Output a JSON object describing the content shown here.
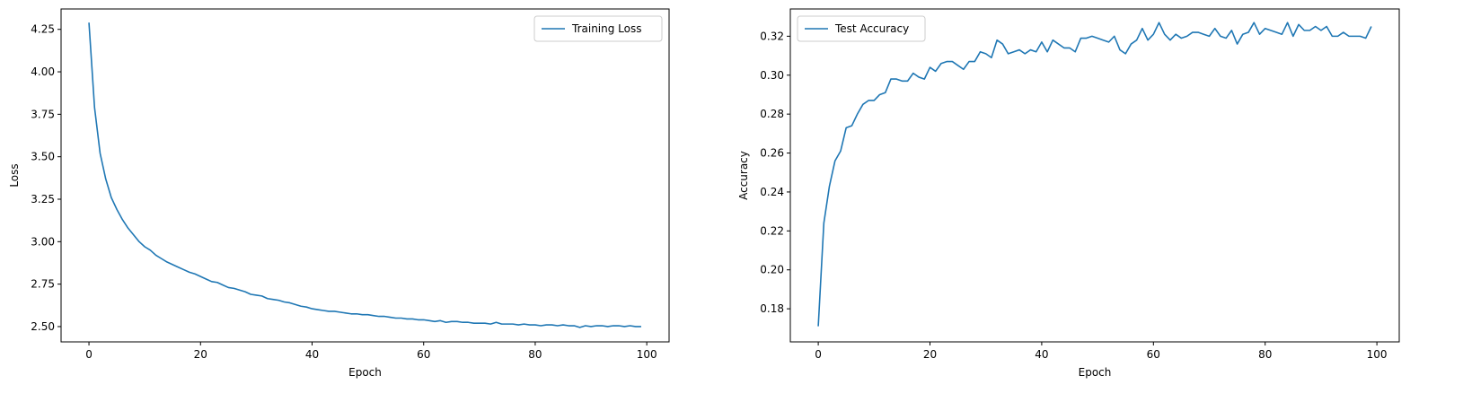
{
  "chart_data": [
    {
      "type": "line",
      "title": "",
      "xlabel": "Epoch",
      "ylabel": "Loss",
      "xlim": [
        -5,
        104
      ],
      "ylim": [
        2.41,
        4.37
      ],
      "xticks": [
        0,
        20,
        40,
        60,
        80,
        100
      ],
      "xtick_labels": [
        "0",
        "20",
        "40",
        "60",
        "80",
        "100"
      ],
      "yticks": [
        2.5,
        2.75,
        3.0,
        3.25,
        3.5,
        3.75,
        4.0,
        4.25
      ],
      "ytick_labels": [
        "2.50",
        "2.75",
        "3.00",
        "3.25",
        "3.50",
        "3.75",
        "4.00",
        "4.25"
      ],
      "grid": false,
      "legend": "upper right",
      "series": [
        {
          "name": "Training Loss",
          "color": "#1f77b4",
          "values": [
            4.29,
            3.79,
            3.52,
            3.37,
            3.26,
            3.19,
            3.13,
            3.08,
            3.04,
            3.0,
            2.97,
            2.95,
            2.92,
            2.9,
            2.88,
            2.865,
            2.85,
            2.835,
            2.82,
            2.81,
            2.795,
            2.78,
            2.765,
            2.76,
            2.745,
            2.73,
            2.725,
            2.715,
            2.705,
            2.69,
            2.685,
            2.68,
            2.665,
            2.66,
            2.655,
            2.645,
            2.64,
            2.63,
            2.62,
            2.615,
            2.605,
            2.6,
            2.595,
            2.59,
            2.59,
            2.585,
            2.58,
            2.575,
            2.575,
            2.57,
            2.57,
            2.565,
            2.56,
            2.56,
            2.555,
            2.55,
            2.55,
            2.545,
            2.545,
            2.54,
            2.54,
            2.535,
            2.53,
            2.535,
            2.525,
            2.53,
            2.53,
            2.525,
            2.525,
            2.52,
            2.52,
            2.52,
            2.515,
            2.525,
            2.515,
            2.515,
            2.515,
            2.51,
            2.515,
            2.51,
            2.51,
            2.505,
            2.51,
            2.51,
            2.505,
            2.51,
            2.505,
            2.505,
            2.495,
            2.505,
            2.5,
            2.505,
            2.505,
            2.5,
            2.505,
            2.505,
            2.5,
            2.505,
            2.5,
            2.5
          ]
        }
      ]
    },
    {
      "type": "line",
      "title": "",
      "xlabel": "Epoch",
      "ylabel": "Accuracy",
      "xlim": [
        -5,
        104
      ],
      "ylim": [
        0.163,
        0.334
      ],
      "xticks": [
        0,
        20,
        40,
        60,
        80,
        100
      ],
      "xtick_labels": [
        "0",
        "20",
        "40",
        "60",
        "80",
        "100"
      ],
      "yticks": [
        0.18,
        0.2,
        0.22,
        0.24,
        0.26,
        0.28,
        0.3,
        0.32
      ],
      "ytick_labels": [
        "0.18",
        "0.20",
        "0.22",
        "0.24",
        "0.26",
        "0.28",
        "0.30",
        "0.32"
      ],
      "grid": false,
      "legend": "upper left",
      "series": [
        {
          "name": "Test Accuracy",
          "color": "#1f77b4",
          "values": [
            0.171,
            0.224,
            0.243,
            0.256,
            0.261,
            0.273,
            0.274,
            0.28,
            0.285,
            0.287,
            0.287,
            0.29,
            0.291,
            0.298,
            0.298,
            0.297,
            0.297,
            0.301,
            0.299,
            0.298,
            0.304,
            0.302,
            0.306,
            0.307,
            0.307,
            0.305,
            0.303,
            0.307,
            0.307,
            0.312,
            0.311,
            0.309,
            0.318,
            0.316,
            0.311,
            0.312,
            0.313,
            0.311,
            0.313,
            0.312,
            0.317,
            0.312,
            0.318,
            0.316,
            0.314,
            0.314,
            0.312,
            0.319,
            0.319,
            0.32,
            0.319,
            0.318,
            0.317,
            0.32,
            0.313,
            0.311,
            0.316,
            0.318,
            0.324,
            0.318,
            0.321,
            0.327,
            0.321,
            0.318,
            0.321,
            0.319,
            0.32,
            0.322,
            0.322,
            0.321,
            0.32,
            0.324,
            0.32,
            0.319,
            0.323,
            0.316,
            0.321,
            0.322,
            0.327,
            0.321,
            0.324,
            0.323,
            0.322,
            0.321,
            0.327,
            0.32,
            0.326,
            0.323,
            0.323,
            0.325,
            0.323,
            0.325,
            0.32,
            0.32,
            0.322,
            0.32,
            0.32,
            0.32,
            0.319,
            0.325
          ]
        }
      ]
    }
  ]
}
